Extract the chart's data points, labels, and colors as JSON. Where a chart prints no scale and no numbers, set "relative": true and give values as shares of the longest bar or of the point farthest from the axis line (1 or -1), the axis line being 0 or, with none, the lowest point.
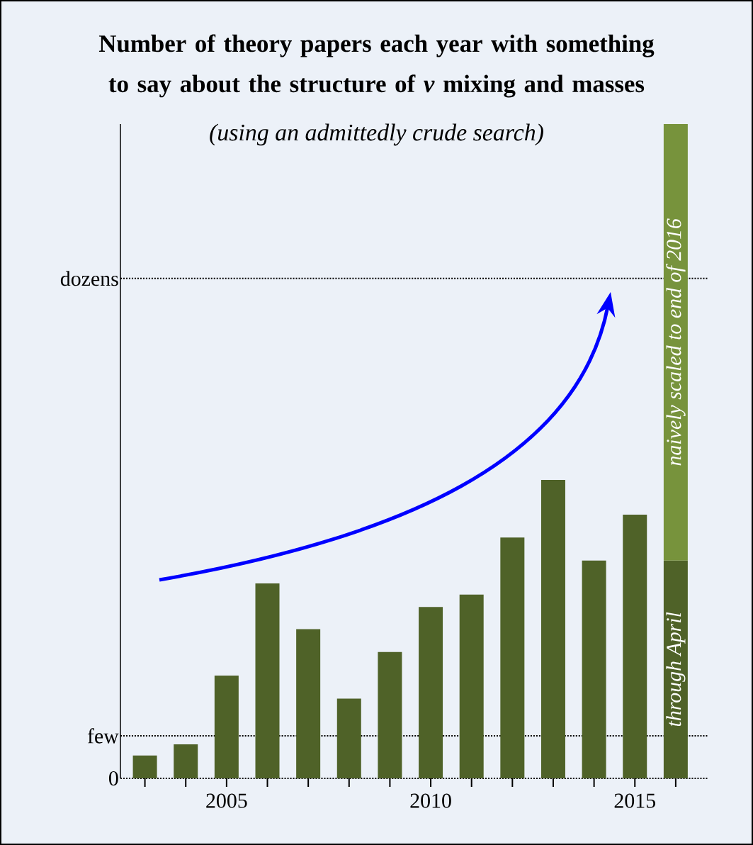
{
  "chart_data": {
    "type": "bar",
    "title": "Number of theory papers each year with something to say about the structure of *ν* mixing and masses",
    "subtitle": "(using an admittedly crude search)",
    "relative": true,
    "stacked": true,
    "x": [
      2003,
      2004,
      2005,
      2006,
      2007,
      2008,
      2009,
      2010,
      2011,
      2012,
      2013,
      2014,
      2015,
      2016
    ],
    "xlim": [
      2002.4,
      2016.8
    ],
    "xticks": [
      {
        "value": 2003,
        "label": null
      },
      {
        "value": 2004,
        "label": null
      },
      2005,
      {
        "value": 2006,
        "label": null
      },
      {
        "value": 2007,
        "label": null
      },
      {
        "value": 2008,
        "label": null
      },
      {
        "value": 2009,
        "label": null
      },
      2010,
      {
        "value": 2011,
        "label": null
      },
      {
        "value": 2012,
        "label": null
      },
      {
        "value": 2013,
        "label": null
      },
      {
        "value": 2014,
        "label": null
      },
      2015,
      {
        "value": 2016,
        "label": null
      }
    ],
    "series": [
      {
        "color": "#4f6228",
        "values": [
          0.035,
          0.052,
          0.157,
          0.298,
          0.228,
          0.122,
          0.193,
          0.262,
          0.281,
          0.368,
          0.456,
          0.333,
          0.403,
          0.333
        ]
      },
      {
        "color": "#77933c",
        "values": [
          null,
          null,
          null,
          null,
          null,
          null,
          null,
          null,
          null,
          null,
          null,
          null,
          null,
          0.667
        ]
      }
    ],
    "ref_lines": [
      {
        "axis": "y",
        "value": 0,
        "label": "0",
        "line_style": "dotted"
      },
      {
        "axis": "y",
        "value": 0.065,
        "label": "few",
        "line_style": "dotted"
      },
      {
        "axis": "y",
        "value": 0.764,
        "label": "dozens",
        "line_style": "dotted"
      }
    ],
    "annotations": [
      "through April",
      "naively scaled to end of 2016"
    ]
  }
}
